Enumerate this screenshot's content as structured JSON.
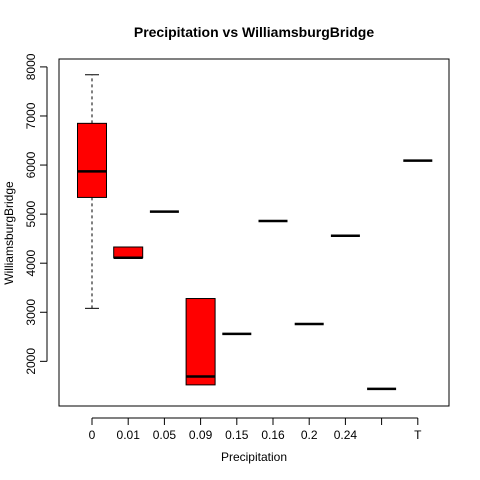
{
  "chart_data": {
    "type": "boxplot",
    "title": "Precipitation vs WilliamsburgBridge",
    "xlabel": "Precipitation",
    "ylabel": "WilliamsburgBridge",
    "ylim": [
      1100,
      8100
    ],
    "y_ticks": [
      2000,
      3000,
      4000,
      5000,
      6000,
      7000,
      8000
    ],
    "y_tick_labels": [
      "2000",
      "3000",
      "4000",
      "5000",
      "6000",
      "7000",
      "8000"
    ],
    "categories": [
      "0",
      "0.01",
      "0.05",
      "0.09",
      "0.15",
      "0.16",
      "0.2",
      "0.24",
      "",
      "T"
    ],
    "box_color": "#ff0000",
    "boxes": [
      {
        "min": 3080,
        "q1": 5340,
        "median": 5870,
        "q3": 6850,
        "max": 7840
      },
      {
        "min": 4110,
        "q1": 4110,
        "median": 4110,
        "q3": 4330,
        "max": 4330
      },
      {
        "min": 5050,
        "q1": 5050,
        "median": 5050,
        "q3": 5050,
        "max": 5050
      },
      {
        "min": 1520,
        "q1": 1520,
        "median": 1690,
        "q3": 3280,
        "max": 3280
      },
      {
        "min": 2560,
        "q1": 2560,
        "median": 2560,
        "q3": 2560,
        "max": 2560
      },
      {
        "min": 4860,
        "q1": 4860,
        "median": 4860,
        "q3": 4860,
        "max": 4860
      },
      {
        "min": 2760,
        "q1": 2760,
        "median": 2760,
        "q3": 2760,
        "max": 2760
      },
      {
        "min": 4560,
        "q1": 4560,
        "median": 4560,
        "q3": 4560,
        "max": 4560
      },
      {
        "min": 1440,
        "q1": 1440,
        "median": 1440,
        "q3": 1440,
        "max": 1440
      },
      {
        "min": 6090,
        "q1": 6090,
        "median": 6090,
        "q3": 6090,
        "max": 6090
      }
    ],
    "grid": false
  }
}
